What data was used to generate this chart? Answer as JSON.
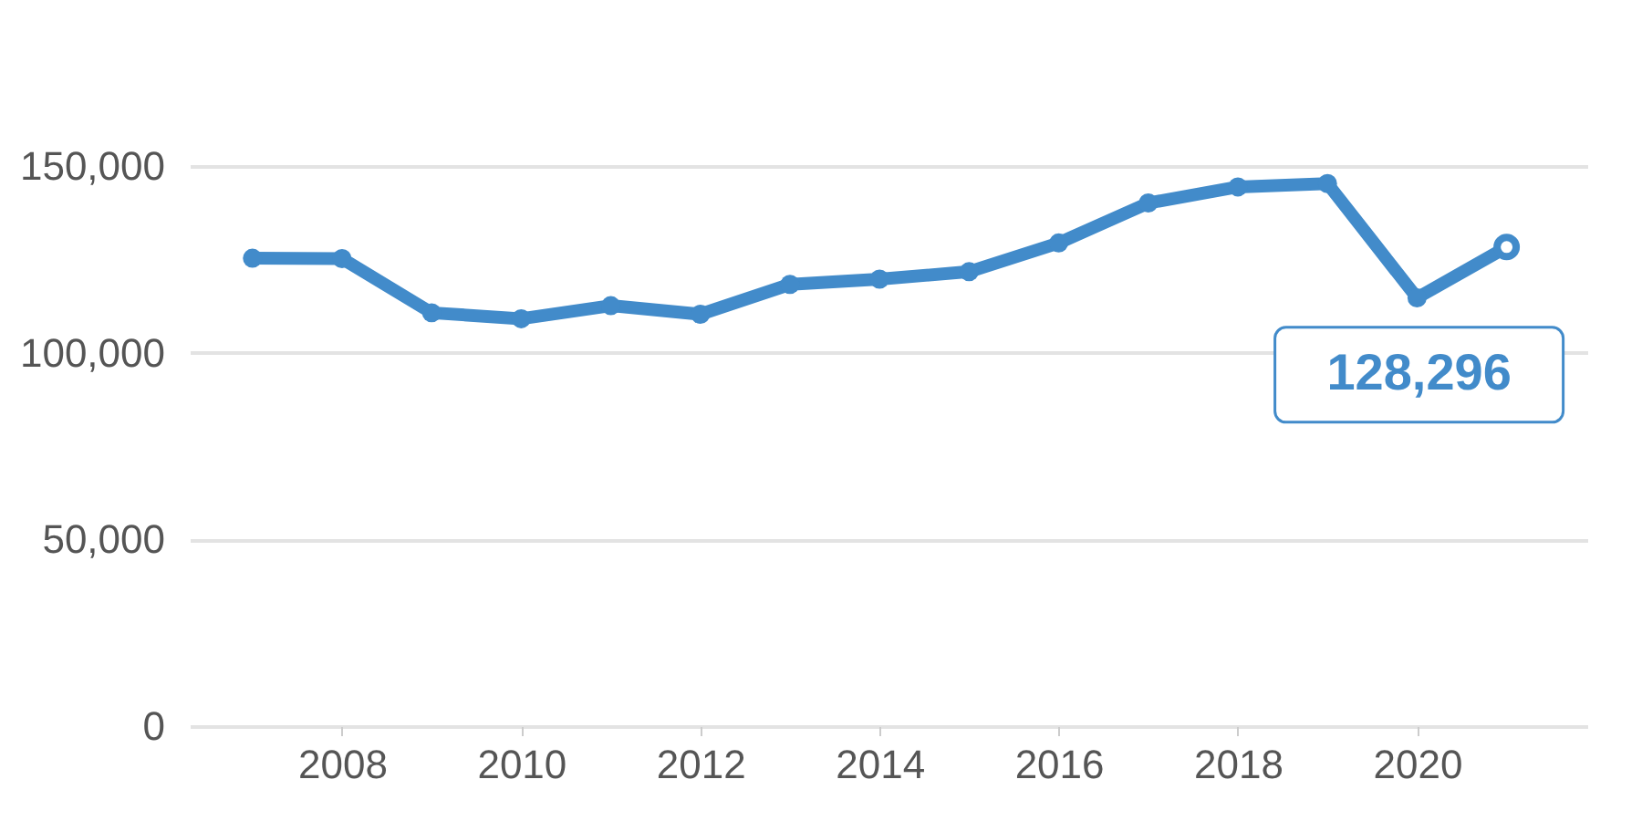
{
  "chart_data": {
    "type": "line",
    "x": [
      2007,
      2008,
      2009,
      2010,
      2011,
      2012,
      2013,
      2014,
      2015,
      2016,
      2017,
      2018,
      2019,
      2020,
      2021
    ],
    "series": [
      {
        "color": "#428bca",
        "values": [
          125300,
          125200,
          110700,
          109100,
          112600,
          110300,
          118300,
          119700,
          121700,
          129400,
          140100,
          144400,
          145300,
          114700,
          128296
        ]
      }
    ],
    "xlim": [
      2006.3,
      2021.9
    ],
    "xticks": [
      2008,
      2010,
      2012,
      2014,
      2016,
      2018,
      2020
    ],
    "ylim": [
      0,
      150000
    ],
    "yticks": [
      0,
      {
        "value": 50000,
        "label": "50,000"
      },
      {
        "value": 100000,
        "label": "100,000"
      },
      {
        "value": 150000,
        "label": "150,000"
      }
    ],
    "grid": "y",
    "marker": "circle",
    "line_style": "solid",
    "annotations": [
      {
        "text": "128,296",
        "x": 2021,
        "y": 128296
      }
    ]
  }
}
